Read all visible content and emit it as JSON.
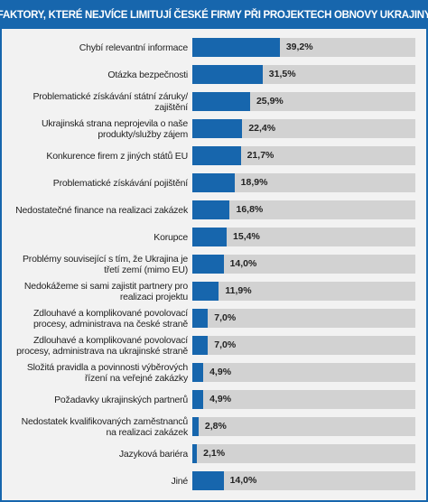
{
  "chart_data": {
    "type": "bar",
    "orientation": "horizontal",
    "title": "FAKTORY, KTERÉ NEJVÍCE LIMITUJÍ ČESKÉ FIRMY PŘI PROJEKTECH OBNOVY UKRAJINY",
    "categories": [
      "Chybí relevantní informace",
      "Otázka bezpečnosti",
      "Problematické získávání státní záruky/ zajištění",
      "Ukrajinská strana neprojevila o naše produkty/služby zájem",
      "Konkurence firem z jiných států EU",
      "Problematické získávání pojištění",
      "Nedostatečné finance na realizaci zakázek",
      "Korupce",
      "Problémy související s tím, že Ukrajina je třetí zemí (mimo EU)",
      "Nedokážeme si sami zajistit partnery pro realizaci projektu",
      "Zdlouhavé a komplikované povolovací procesy, administrava na české straně",
      "Zdlouhavé a komplikované povolovací procesy, administrava na ukrajinské straně",
      "Složitá pravidla a povinnosti výběrových řízení na veřejné zakázky",
      "Požadavky ukrajinských partnerů",
      "Nedostatek kvalifikovaných zaměstnanců na realizaci zakázek",
      "Jazyková bariéra",
      "Jiné"
    ],
    "values": [
      39.2,
      31.5,
      25.9,
      22.4,
      21.7,
      18.9,
      16.8,
      15.4,
      14.0,
      11.9,
      7.0,
      7.0,
      4.9,
      4.9,
      2.8,
      2.1,
      14.0
    ],
    "value_labels": [
      "39,2%",
      "31,5%",
      "25,9%",
      "22,4%",
      "21,7%",
      "18,9%",
      "16,8%",
      "15,4%",
      "14,0%",
      "11,9%",
      "7,0%",
      "7,0%",
      "4,9%",
      "4,9%",
      "2,8%",
      "2,1%",
      "14,0%"
    ],
    "color": "#1766ad",
    "track_color": "#d2d2d2",
    "xlim": [
      0,
      100
    ]
  }
}
